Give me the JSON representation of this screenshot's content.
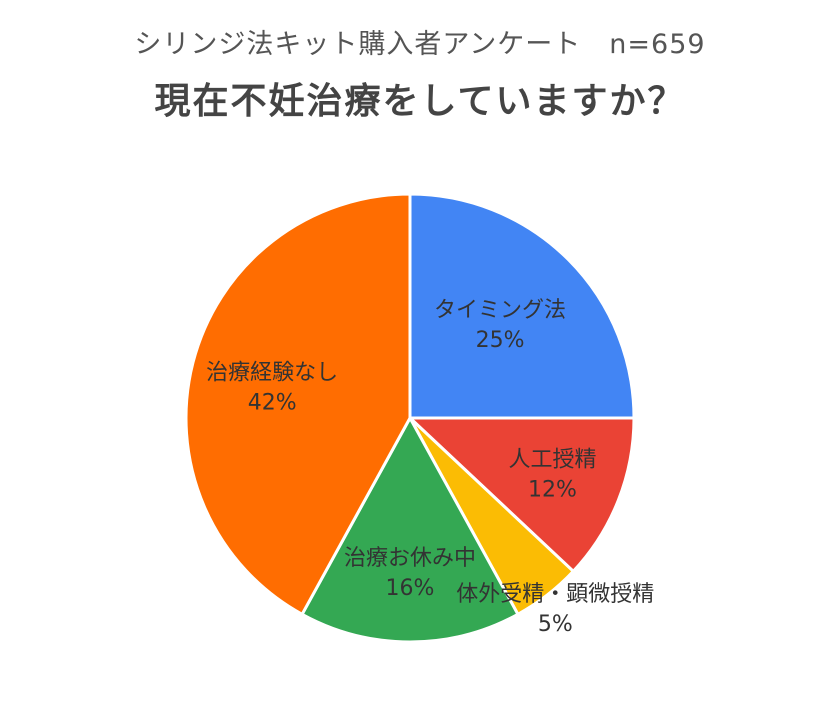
{
  "header": {
    "subtitle": "シリンジ法キット購入者アンケート　n=659",
    "title": "現在不妊治療をしていますか？"
  },
  "chart_data": {
    "type": "pie",
    "title": "現在不妊治療をしていますか？",
    "subtitle": "シリンジ法キット購入者アンケート　n=659",
    "start_angle": "12 o'clock",
    "direction": "clockwise",
    "slices": [
      {
        "label": "タイミング法",
        "value": 25,
        "value_label": "25%",
        "color": "#4285f4"
      },
      {
        "label": "人工授精",
        "value": 12,
        "value_label": "12%",
        "color": "#ea4335"
      },
      {
        "label": "体外受精・顕微授精",
        "value": 5,
        "value_label": "5%",
        "color": "#fbbc04"
      },
      {
        "label": "治療お休み中",
        "value": 16,
        "value_label": "16%",
        "color": "#34a853"
      },
      {
        "label": "治療経験なし",
        "value": 42,
        "value_label": "42%",
        "color": "#ff6d01"
      }
    ],
    "legend": "none",
    "label_position": "inside"
  }
}
